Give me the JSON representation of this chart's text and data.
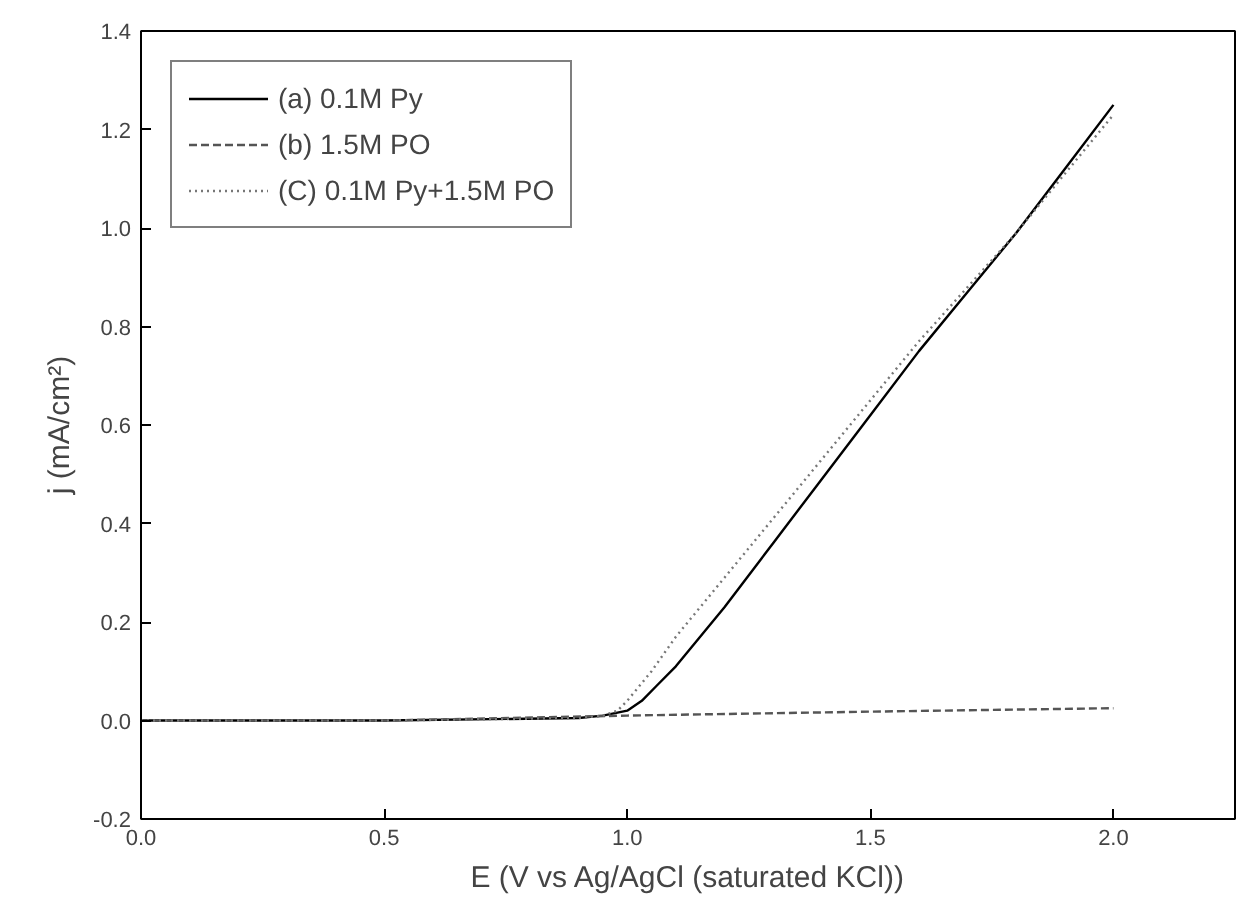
{
  "chart_data": {
    "type": "line",
    "xlabel": "E (V vs Ag/AgCl (saturated KCl))",
    "ylabel": "j (mA/cm²)",
    "xlim": [
      0,
      2.25
    ],
    "ylim": [
      -0.2,
      1.4
    ],
    "xticks": [
      {
        "value": 0,
        "label": "0.0"
      },
      0.5,
      {
        "value": 1,
        "label": "1.0"
      },
      1.5,
      {
        "value": 2,
        "label": "2.0"
      }
    ],
    "yticks": [
      -0.2,
      {
        "value": 0,
        "label": "0.0"
      },
      0.2,
      0.4,
      0.6,
      0.8,
      {
        "value": 1,
        "label": "1.0"
      },
      1.2,
      1.4
    ],
    "grid": false,
    "legend": "top left",
    "series": [
      {
        "name": "(a) 0.1M Py",
        "color": "#000000",
        "line_style": "solid",
        "x": [
          0,
          0.5,
          0.9,
          0.95,
          1.0,
          1.03,
          1.06,
          1.1,
          1.2,
          1.3,
          1.4,
          1.5,
          1.6,
          1.7,
          1.8,
          1.9,
          2.0
        ],
        "values": [
          0,
          0,
          0.005,
          0.01,
          0.02,
          0.04,
          0.07,
          0.11,
          0.23,
          0.36,
          0.49,
          0.62,
          0.75,
          0.87,
          0.99,
          1.12,
          1.25
        ]
      },
      {
        "name": "(b) 1.5M PO",
        "color": "#555555",
        "line_style": "dashed",
        "x": [
          0,
          0.5,
          1.0,
          1.5,
          2.0
        ],
        "values": [
          0,
          0,
          0.01,
          0.018,
          0.025
        ]
      },
      {
        "name": "(C) 0.1M Py+1.5M PO",
        "color": "#777777",
        "line_style": "dotted",
        "x": [
          0,
          0.5,
          0.9,
          0.95,
          0.98,
          1.0,
          1.05,
          1.1,
          1.2,
          1.3,
          1.4,
          1.5,
          1.6,
          1.7,
          1.8,
          1.9,
          2.0
        ],
        "values": [
          0,
          0,
          0.005,
          0.01,
          0.02,
          0.04,
          0.1,
          0.17,
          0.29,
          0.41,
          0.53,
          0.65,
          0.77,
          0.88,
          0.99,
          1.11,
          1.23
        ]
      }
    ]
  }
}
